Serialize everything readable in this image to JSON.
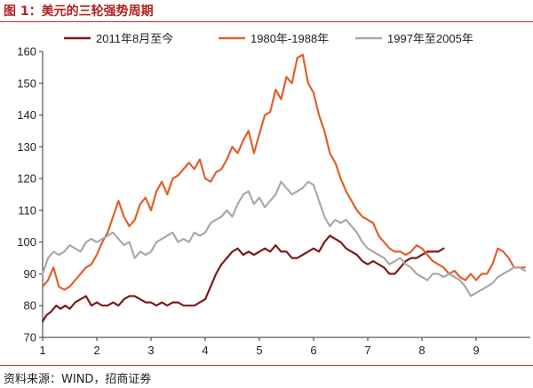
{
  "figure": {
    "title": "图 1：美元的三轮强势周期",
    "source": "资料来源：WIND，招商证券"
  },
  "chart_data": {
    "type": "line",
    "title": "",
    "xlabel": "",
    "ylabel": "",
    "xlim": [
      1,
      10
    ],
    "ylim": [
      70,
      160
    ],
    "x_ticks": [
      1,
      2,
      3,
      4,
      5,
      6,
      7,
      8,
      9
    ],
    "y_ticks": [
      70,
      80,
      90,
      100,
      110,
      120,
      130,
      140,
      150,
      160
    ],
    "grid": false,
    "legend": "top",
    "series": [
      {
        "name": "2011年8月至今",
        "color": "#7b1a1a",
        "x": [
          1.0,
          1.07,
          1.15,
          1.25,
          1.33,
          1.42,
          1.5,
          1.6,
          1.7,
          1.8,
          1.9,
          2.0,
          2.1,
          2.2,
          2.3,
          2.4,
          2.5,
          2.6,
          2.7,
          2.8,
          2.9,
          3.0,
          3.1,
          3.2,
          3.3,
          3.4,
          3.5,
          3.6,
          3.7,
          3.8,
          3.9,
          4.0,
          4.1,
          4.2,
          4.3,
          4.4,
          4.5,
          4.6,
          4.7,
          4.8,
          4.9,
          5.0,
          5.1,
          5.2,
          5.3,
          5.4,
          5.5,
          5.6,
          5.7,
          5.8,
          5.9,
          6.0,
          6.1,
          6.2,
          6.3,
          6.4,
          6.5,
          6.6,
          6.7,
          6.8,
          6.9,
          7.0,
          7.1,
          7.2,
          7.3,
          7.4,
          7.5,
          7.6,
          7.7,
          7.8,
          7.9,
          8.0,
          8.1,
          8.2,
          8.3,
          8.4
        ],
        "values": [
          75,
          77,
          78,
          80,
          79,
          80,
          79,
          81,
          82,
          83,
          80,
          81,
          80,
          80,
          81,
          80,
          82,
          83,
          83,
          82,
          81,
          81,
          80,
          81,
          80,
          81,
          81,
          80,
          80,
          80,
          81,
          82,
          86,
          90,
          93,
          95,
          97,
          98,
          96,
          97,
          96,
          97,
          98,
          97,
          99,
          97,
          97,
          95,
          95,
          96,
          97,
          98,
          97,
          100,
          102,
          101,
          100,
          98,
          97,
          96,
          94,
          93,
          94,
          93,
          92,
          90,
          90,
          92,
          94,
          95,
          95,
          96,
          97,
          97,
          97,
          98
        ]
      },
      {
        "name": "1980年-1988年",
        "color": "#e0602a",
        "x": [
          1.0,
          1.1,
          1.2,
          1.3,
          1.4,
          1.5,
          1.6,
          1.7,
          1.8,
          1.9,
          2.0,
          2.1,
          2.2,
          2.3,
          2.4,
          2.5,
          2.6,
          2.7,
          2.8,
          2.9,
          3.0,
          3.1,
          3.2,
          3.3,
          3.4,
          3.5,
          3.6,
          3.7,
          3.8,
          3.9,
          4.0,
          4.1,
          4.2,
          4.3,
          4.4,
          4.5,
          4.6,
          4.7,
          4.8,
          4.9,
          5.0,
          5.1,
          5.2,
          5.3,
          5.4,
          5.5,
          5.6,
          5.7,
          5.8,
          5.9,
          6.0,
          6.1,
          6.2,
          6.3,
          6.4,
          6.5,
          6.6,
          6.7,
          6.8,
          6.9,
          7.0,
          7.1,
          7.2,
          7.3,
          7.4,
          7.5,
          7.6,
          7.7,
          7.8,
          7.9,
          8.0,
          8.1,
          8.2,
          8.3,
          8.4,
          8.5,
          8.6,
          8.7,
          8.8,
          8.9,
          9.0,
          9.1,
          9.2,
          9.3,
          9.4,
          9.5,
          9.6,
          9.7,
          9.8,
          9.9
        ],
        "values": [
          86,
          88,
          92,
          86,
          85,
          86,
          88,
          90,
          92,
          93,
          96,
          100,
          103,
          108,
          113,
          108,
          105,
          107,
          112,
          114,
          110,
          116,
          119,
          115,
          120,
          121,
          123,
          125,
          123,
          126,
          120,
          119,
          122,
          123,
          126,
          130,
          128,
          132,
          135,
          128,
          134,
          140,
          141,
          148,
          145,
          152,
          150,
          158,
          159,
          150,
          147,
          140,
          135,
          128,
          125,
          120,
          116,
          113,
          110,
          108,
          107,
          106,
          102,
          100,
          98,
          97,
          97,
          96,
          97,
          99,
          98,
          96,
          94,
          93,
          92,
          90,
          91,
          89,
          88,
          90,
          88,
          90,
          90,
          93,
          98,
          97,
          95,
          92,
          92,
          92
        ]
      },
      {
        "name": "1997年至2005年",
        "color": "#a9a9a9",
        "x": [
          1.0,
          1.1,
          1.2,
          1.3,
          1.4,
          1.5,
          1.6,
          1.7,
          1.8,
          1.9,
          2.0,
          2.1,
          2.2,
          2.3,
          2.4,
          2.5,
          2.6,
          2.7,
          2.8,
          2.9,
          3.0,
          3.1,
          3.2,
          3.3,
          3.4,
          3.5,
          3.6,
          3.7,
          3.8,
          3.9,
          4.0,
          4.1,
          4.2,
          4.3,
          4.4,
          4.5,
          4.6,
          4.7,
          4.8,
          4.9,
          5.0,
          5.1,
          5.2,
          5.3,
          5.4,
          5.5,
          5.6,
          5.7,
          5.8,
          5.9,
          6.0,
          6.1,
          6.2,
          6.3,
          6.4,
          6.5,
          6.6,
          6.7,
          6.8,
          6.9,
          7.0,
          7.1,
          7.2,
          7.3,
          7.4,
          7.5,
          7.6,
          7.7,
          7.8,
          7.9,
          8.0,
          8.1,
          8.2,
          8.3,
          8.4,
          8.5,
          8.6,
          8.7,
          8.8,
          8.9,
          9.0,
          9.1,
          9.2,
          9.3,
          9.4,
          9.5,
          9.6,
          9.7,
          9.8,
          9.9
        ],
        "values": [
          90,
          95,
          97,
          96,
          97,
          99,
          98,
          97,
          100,
          101,
          100,
          101,
          102,
          103,
          101,
          99,
          100,
          95,
          97,
          96,
          97,
          100,
          101,
          102,
          103,
          100,
          101,
          100,
          103,
          102,
          103,
          106,
          107,
          108,
          110,
          108,
          112,
          115,
          116,
          112,
          114,
          111,
          113,
          115,
          119,
          117,
          115,
          116,
          117,
          119,
          118,
          113,
          108,
          105,
          107,
          106,
          107,
          105,
          103,
          100,
          98,
          97,
          96,
          95,
          93,
          94,
          95,
          93,
          92,
          90,
          89,
          88,
          90,
          90,
          89,
          90,
          89,
          88,
          86,
          83,
          84,
          85,
          86,
          87,
          89,
          90,
          91,
          92,
          92,
          91
        ]
      }
    ]
  }
}
